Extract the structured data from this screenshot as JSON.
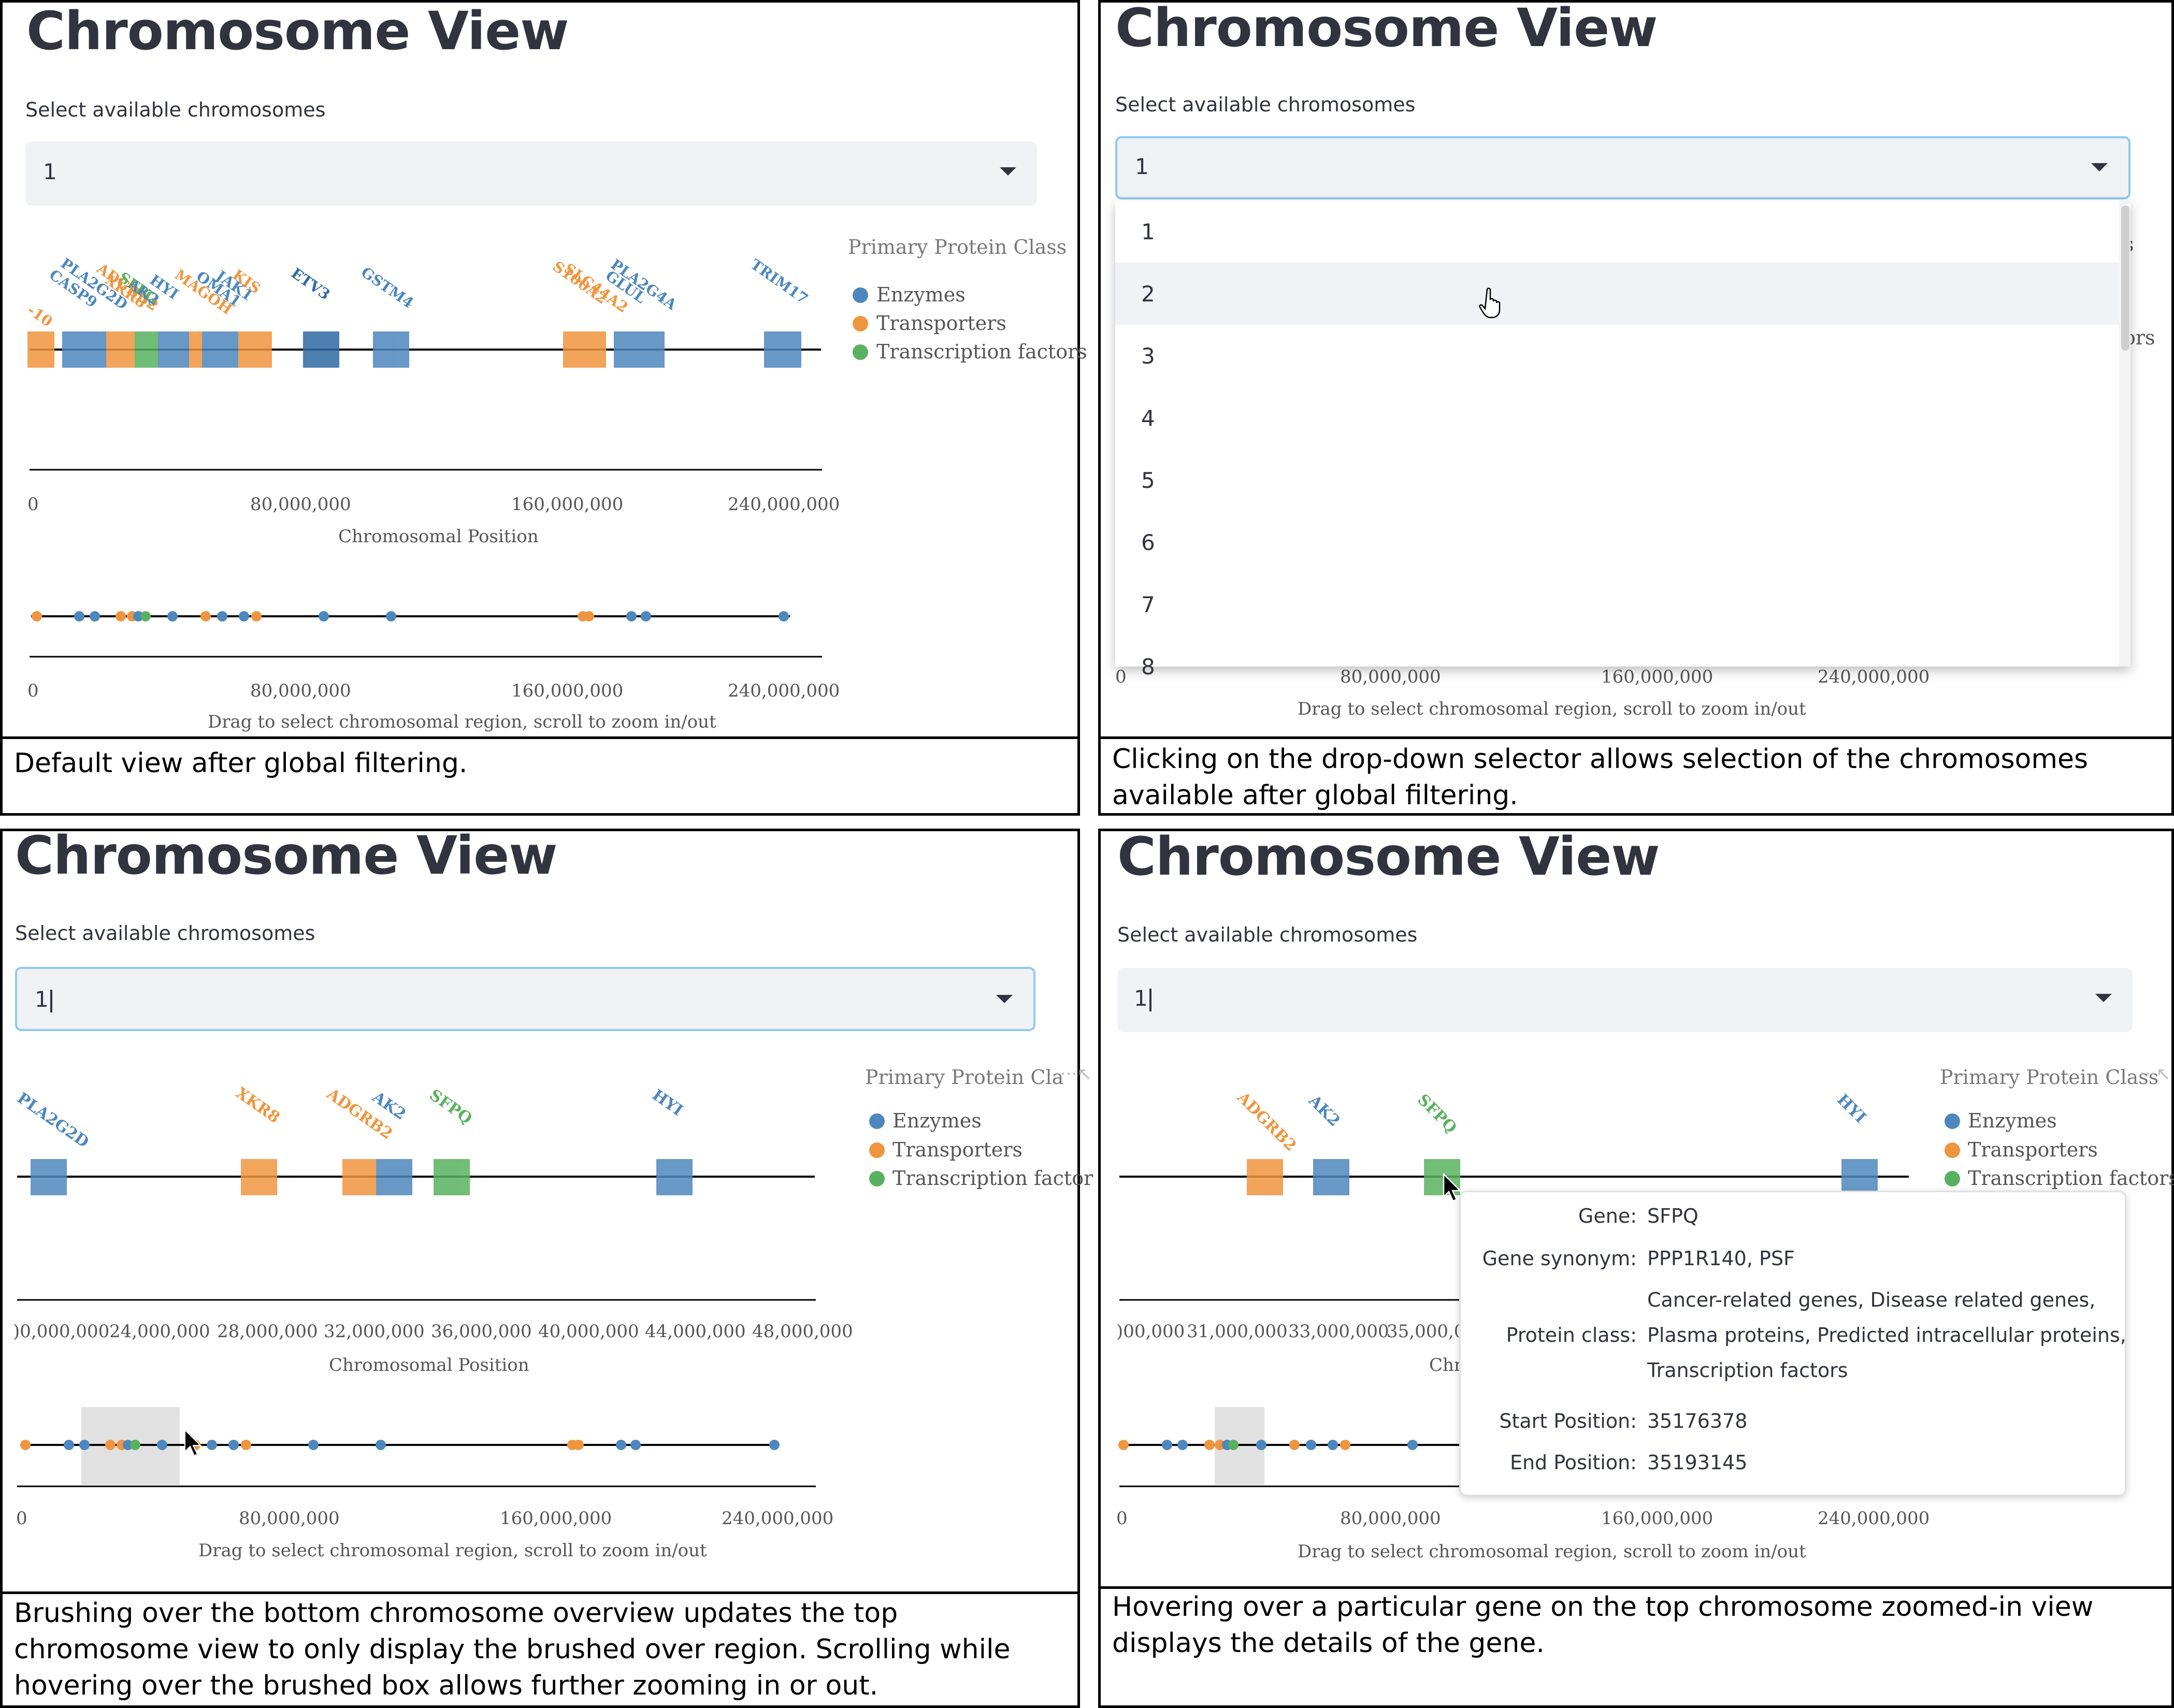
{
  "colors": {
    "enzymes": "#4d87bd",
    "transporters": "#f0953f",
    "transcription": "#59b15f",
    "axis": "#000000",
    "title": "#31333f",
    "selectbox_bg": "#f0f2f6",
    "focus": "#8ecbee"
  },
  "panels": {
    "p1": {
      "title": "Chromosome View",
      "select_label": "Select available chromosomes",
      "select_value": "1",
      "legend": {
        "title": "Primary Protein Class",
        "items": [
          "Enzymes",
          "Transporters",
          "Transcription factors"
        ]
      },
      "top_ticks": [
        "0",
        "80,000,000",
        "160,000,000",
        "240,000,000"
      ],
      "top_axis_label": "Chromosomal Position",
      "bottom_ticks": [
        "0",
        "80,000,000",
        "160,000,000",
        "240,000,000"
      ],
      "bottom_axis_label": "Drag to select chromosomal region, scroll to zoom in/out",
      "gene_labels": [
        "-10",
        "CASP9",
        "PLA2G2D",
        "ADGRB2",
        "SFPQ",
        "XKR8",
        "AK2",
        "HYI",
        "MAGOH",
        "OMA1",
        "JAK1",
        "KIS",
        "GSTM4",
        "ETV3",
        "S100A2",
        "SLC44A2",
        "PLA2G4A",
        "GLUL",
        "TRIM17"
      ],
      "caption": "Default view after global filtering."
    },
    "p2": {
      "title": "Chromosome View",
      "select_label": "Select available chromosomes",
      "select_value": "1",
      "dropdown_options": [
        "1",
        "2",
        "3",
        "4",
        "5",
        "6",
        "7",
        "8"
      ],
      "hovered_option": "2",
      "legend_fragments": [
        "s",
        "ors"
      ],
      "bottom_ticks": [
        "0",
        "80,000,000",
        "160,000,000",
        "240,000,000"
      ],
      "bottom_axis_label": "Drag to select chromosomal region, scroll to zoom in/out",
      "caption": "Clicking on the drop-down selector allows selection of the chromosomes available after global filtering."
    },
    "p3": {
      "title": "Chromosome View",
      "select_label": "Select available chromosomes",
      "select_value": "1",
      "legend": {
        "title": "Primary Protein Cla",
        "items": [
          "Enzymes",
          "Transporters",
          "Transcription factor"
        ]
      },
      "gene_labels": [
        "PLA2G2D",
        "XKR8",
        "ADGRB2",
        "AK2",
        "SFPQ",
        "HYI"
      ],
      "top_ticks": [
        ")0,000,000",
        "24,000,000",
        "28,000,000",
        "32,000,000",
        "36,000,000",
        "40,000,000",
        "44,000,000",
        "48,000,000"
      ],
      "top_axis_label": "Chromosomal Position",
      "bottom_ticks": [
        "0",
        "80,000,000",
        "160,000,000",
        "240,000,000"
      ],
      "bottom_axis_label": "Drag to select chromosomal region, scroll to zoom in/out",
      "caption": "Brushing over the bottom chromosome overview updates the top chromosome view to  only display the brushed over region. Scrolling while hovering over the brushed box allows further zooming in or out."
    },
    "p4": {
      "title": "Chromosome View",
      "select_label": "Select available chromosomes",
      "select_value": "1",
      "legend": {
        "title": "Primary Protein Class",
        "items": [
          "Enzymes",
          "Transporters",
          "Transcription factors"
        ]
      },
      "gene_labels": [
        "ADGRB2",
        "AK2",
        "SFPQ",
        "HYI"
      ],
      "top_ticks": [
        ")00,000",
        "31,000,000",
        "33,000,000",
        "35,000,0("
      ],
      "top_axis_label": "Chr",
      "bottom_ticks": [
        "0",
        "80,000,000",
        "160,000,000",
        "240,000,000"
      ],
      "bottom_axis_label": "Drag to select chromosomal region, scroll to zoom in/out",
      "tooltip": {
        "gene_key": "Gene:",
        "gene_val": "SFPQ",
        "syn_key": "Gene synonym:",
        "syn_val": "PPP1R140, PSF",
        "class_key": "Protein class:",
        "class_val": [
          "Cancer-related genes, Disease related genes,",
          "Plasma proteins, Predicted intracellular proteins,",
          "Transcription factors"
        ],
        "start_key": "Start Position:",
        "start_val": "35176378",
        "end_key": "End Position:",
        "end_val": "35193145"
      },
      "caption": "Hovering over a particular gene on the top chromosome zoomed-in view displays the details of the gene."
    }
  }
}
